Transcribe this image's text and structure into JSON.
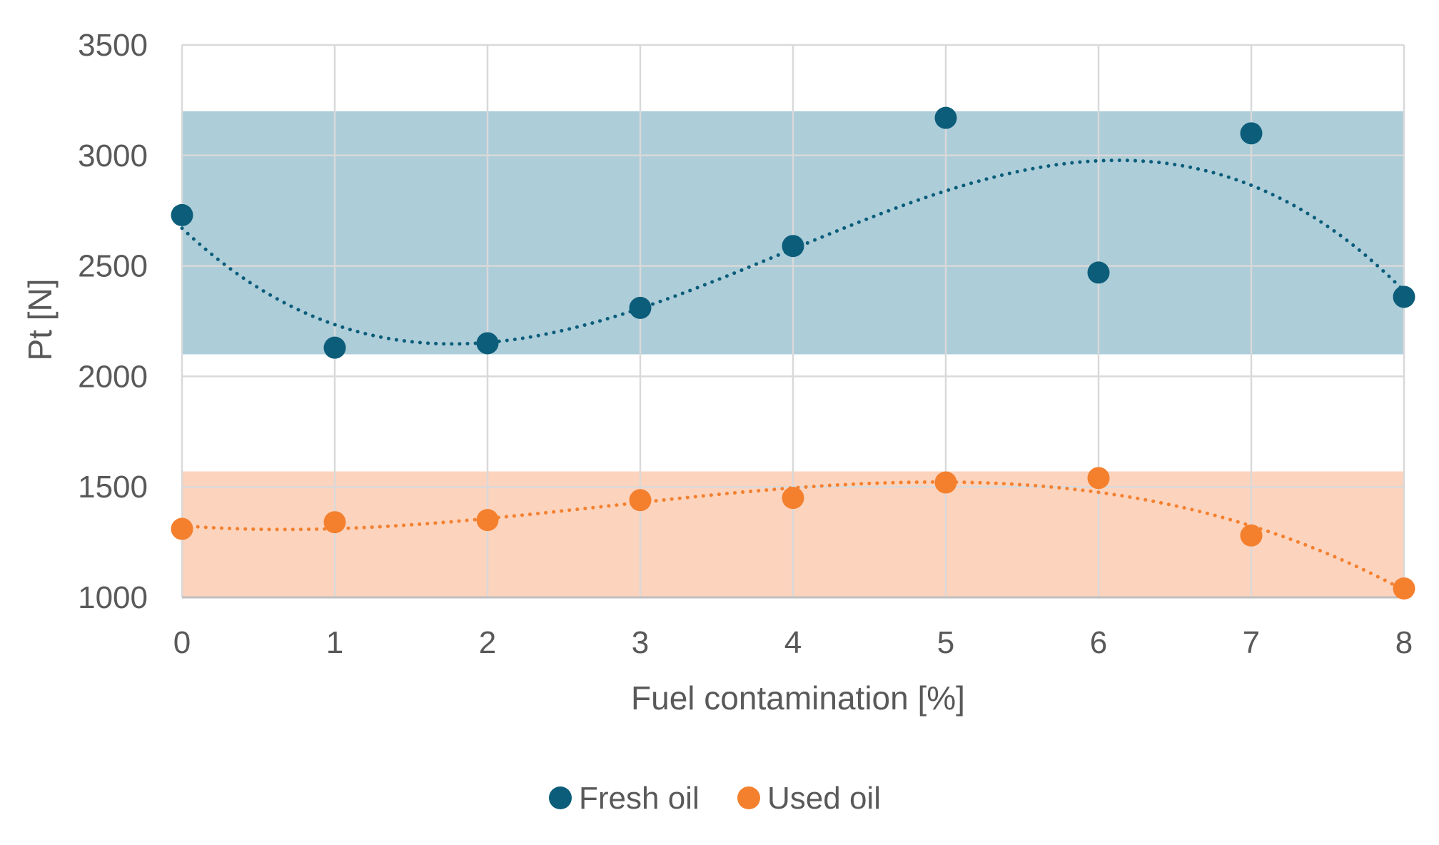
{
  "chart_data": {
    "type": "scatter",
    "title": "",
    "xlabel": "Fuel contamination [%]",
    "ylabel": "Pt [N]",
    "xlim": [
      0,
      8
    ],
    "ylim": [
      1000,
      3500
    ],
    "xticks": [
      0,
      1,
      2,
      3,
      4,
      5,
      6,
      7,
      8
    ],
    "yticks": [
      1000,
      1500,
      2000,
      2500,
      3000,
      3500
    ],
    "grid": true,
    "legend_position": "bottom",
    "series": [
      {
        "name": "Fresh oil",
        "color": "#0b5d7a",
        "band_color": "#adcdd9",
        "band": [
          2100,
          3200
        ],
        "x": [
          0,
          1,
          2,
          3,
          4,
          5,
          6,
          7,
          8
        ],
        "y": [
          2730,
          2130,
          2150,
          2310,
          2590,
          3170,
          2470,
          3100,
          2360
        ],
        "trendline": "polynomial-3"
      },
      {
        "name": "Used oil",
        "color": "#f4802e",
        "band_color": "#fcd3bd",
        "band": [
          1000,
          1570
        ],
        "x": [
          0,
          1,
          2,
          3,
          4,
          5,
          6,
          7,
          8
        ],
        "y": [
          1310,
          1340,
          1350,
          1440,
          1450,
          1520,
          1540,
          1280,
          1040
        ],
        "trendline": "polynomial-3"
      }
    ]
  }
}
